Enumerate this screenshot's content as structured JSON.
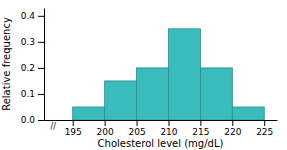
{
  "chart_data": {
    "type": "histogram",
    "bins": [
      195,
      200,
      205,
      210,
      215,
      220,
      225
    ],
    "values": [
      0.05,
      0.15,
      0.2,
      0.35,
      0.2,
      0.05
    ],
    "color": "#3bbcbc",
    "xlabel": "Cholesterol level (mg/dL)",
    "ylabel": "Relative frequency",
    "xlim": [
      190.5,
      227
    ],
    "ylim": [
      0,
      0.43
    ],
    "xticks": [
      195,
      200,
      205,
      210,
      215,
      220,
      225
    ],
    "yticks": [
      {
        "value": 0.0,
        "label": "0.0"
      },
      0.1,
      0.2,
      0.3,
      0.4
    ],
    "annotations": [
      "//"
    ]
  }
}
